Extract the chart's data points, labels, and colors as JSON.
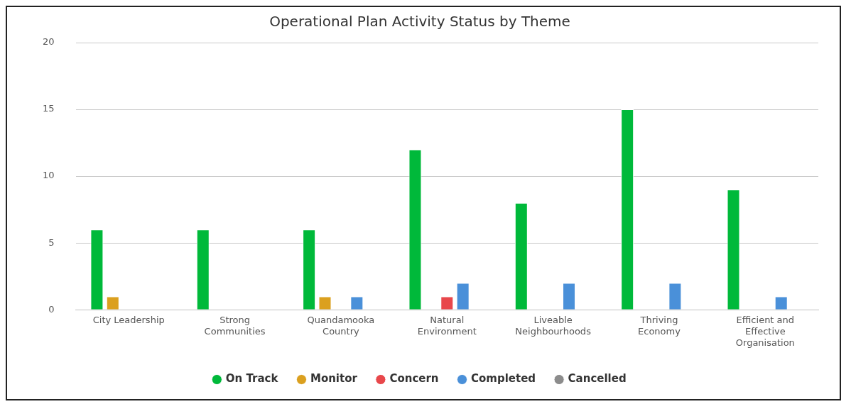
{
  "chart_data": {
    "type": "bar",
    "title": "Operational Plan Activity Status by Theme",
    "categories": [
      "City Leadership",
      "Strong Communities",
      "Quandamooka Country",
      "Natural Environment",
      "Liveable Neighbourhoods",
      "Thriving Economy",
      "Efficient and Effective Organisation"
    ],
    "series": [
      {
        "name": "On Track",
        "color": "#00b93a",
        "values": [
          6,
          6,
          6,
          12,
          8,
          15,
          9
        ]
      },
      {
        "name": "Monitor",
        "color": "#dba01f",
        "values": [
          1,
          0,
          1,
          0,
          0,
          0,
          0
        ]
      },
      {
        "name": "Concern",
        "color": "#e8474b",
        "values": [
          0,
          0,
          0,
          1,
          0,
          0,
          0
        ]
      },
      {
        "name": "Completed",
        "color": "#4a90d9",
        "values": [
          0,
          0,
          1,
          2,
          2,
          2,
          1
        ]
      },
      {
        "name": "Cancelled",
        "color": "#8c8c8c",
        "values": [
          0,
          0,
          0,
          0,
          0,
          0,
          0
        ]
      }
    ],
    "ylim": [
      0,
      20
    ],
    "yticks": [
      0,
      5,
      10,
      15,
      20
    ],
    "grid": "y",
    "legend": "bottom",
    "marker": "circle"
  }
}
